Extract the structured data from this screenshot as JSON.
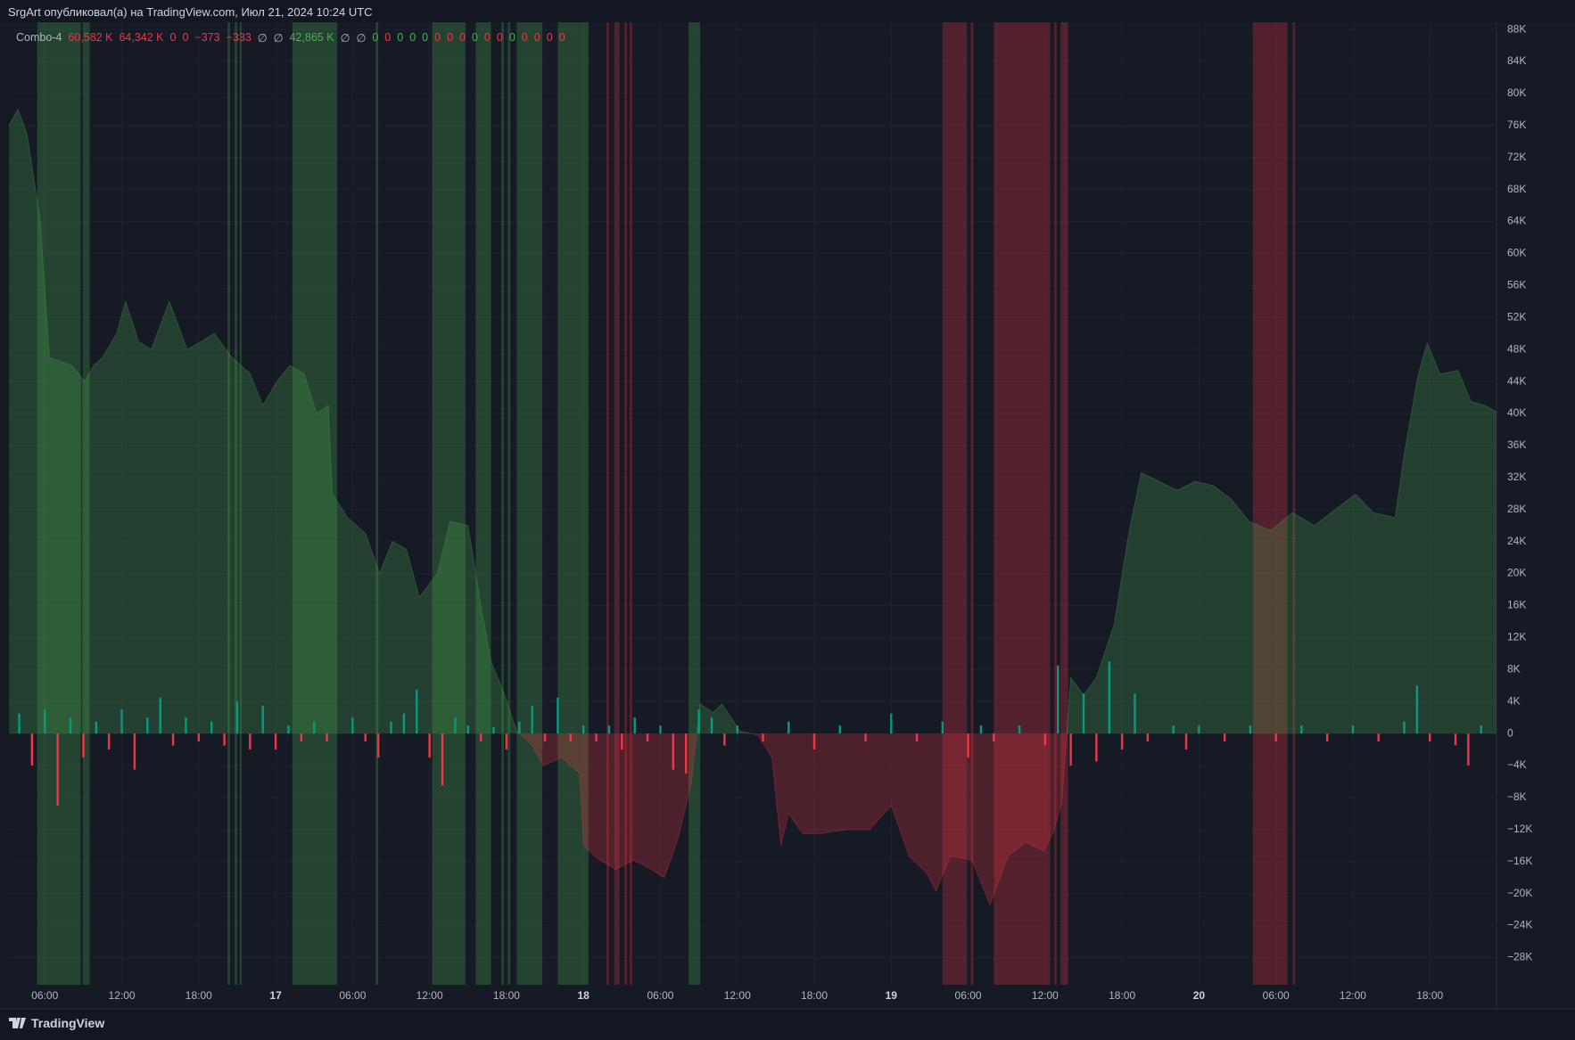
{
  "header": "SrgArt опубликовал(а) на TradingView.com, Июл 21, 2024 10:24 UTC",
  "footer": "TradingView",
  "chart_data": {
    "type": "area",
    "legend": [
      {
        "text": "Combo-4",
        "color": "#b2b5be"
      },
      {
        "text": "60,582 K",
        "color": "#f23645"
      },
      {
        "text": "64,342 K",
        "color": "#f23645"
      },
      {
        "text": "0",
        "color": "#f23645"
      },
      {
        "text": "0",
        "color": "#f23645"
      },
      {
        "text": "−373",
        "color": "#f23645"
      },
      {
        "text": "−333",
        "color": "#f23645"
      },
      {
        "text": "∅",
        "color": "#b2b5be"
      },
      {
        "text": "∅",
        "color": "#b2b5be"
      },
      {
        "text": "42,865 K",
        "color": "#4caf50"
      },
      {
        "text": "∅",
        "color": "#b2b5be"
      },
      {
        "text": "∅",
        "color": "#b2b5be"
      },
      {
        "text": "0",
        "color": "#4caf50"
      },
      {
        "text": "0",
        "color": "#f23645"
      },
      {
        "text": "0",
        "color": "#4caf50"
      },
      {
        "text": "0",
        "color": "#4caf50"
      },
      {
        "text": "0",
        "color": "#4caf50"
      },
      {
        "text": "0",
        "color": "#f23645"
      },
      {
        "text": "0",
        "color": "#f23645"
      },
      {
        "text": "0",
        "color": "#f23645"
      },
      {
        "text": "0",
        "color": "#4caf50"
      },
      {
        "text": "0",
        "color": "#f23645"
      },
      {
        "text": "0",
        "color": "#f23645"
      },
      {
        "text": "0",
        "color": "#4caf50"
      },
      {
        "text": "0",
        "color": "#f23645"
      },
      {
        "text": "0",
        "color": "#f23645"
      },
      {
        "text": "0",
        "color": "#f23645"
      },
      {
        "text": "0",
        "color": "#f23645"
      }
    ],
    "x": [
      3.2,
      3.9,
      4.6,
      5.65,
      6.35,
      8.1,
      9.1,
      9.8,
      10.5,
      11.6,
      12.3,
      13.3,
      14.3,
      15.7,
      16.4,
      17.1,
      18.2,
      19.2,
      20.6,
      22,
      23,
      24.1,
      25.1,
      26.2,
      27.2,
      28.1,
      28.4,
      29.6,
      31,
      32.1,
      33.1,
      34.2,
      35.2,
      36.6,
      37.6,
      39,
      40,
      40.8,
      41.8,
      42.8,
      43.9,
      44.9,
      46.3,
      47.7,
      48,
      49,
      50.5,
      51.9,
      53.3,
      54.3,
      55.4,
      56.4,
      57.1,
      58.1,
      58.8,
      60.2,
      61.6,
      62.7,
      63.4,
      64,
      65.1,
      66.5,
      68.6,
      70.3,
      72,
      73.4,
      74.8,
      75.5,
      76.6,
      78.3,
      79.7,
      81.1,
      82.5,
      83.9,
      84.6,
      85.3,
      86,
      87,
      88,
      89.4,
      90.5,
      91.5,
      92.9,
      94.3,
      95.7,
      97.1,
      98.5,
      99.9,
      101.6,
      103.3,
      105,
      106.8,
      108.2,
      109.6,
      111.3,
      112,
      113.1,
      113.8,
      114.8,
      116.2,
      117.2,
      118.3,
      119.2
    ],
    "series": [
      {
        "name": "Combo-4",
        "up_color": "#4caf50",
        "down_color": "#f23645",
        "values": [
          76,
          78,
          75,
          64,
          47,
          46,
          44,
          46,
          47,
          50,
          54,
          49,
          48,
          54,
          51,
          48,
          49,
          50,
          47,
          45,
          41,
          44,
          46,
          45,
          40,
          41,
          30,
          27,
          25,
          20,
          24,
          23,
          17,
          20,
          26.5,
          26,
          16,
          9,
          5,
          0.3,
          -1.3,
          -4,
          -3,
          -5,
          -14,
          -15.5,
          -17,
          -15.8,
          -17,
          -18,
          -13,
          -6.3,
          3.7,
          2.6,
          3.7,
          0.3,
          -0.2,
          -3,
          -14,
          -10,
          -12.5,
          -12.5,
          -12,
          -12,
          -9,
          -15.3,
          -17.5,
          -19.7,
          -15.3,
          -15.8,
          -21.4,
          -15.3,
          -13.6,
          -14.7,
          -12.5,
          -8.6,
          7,
          4.8,
          7,
          13.7,
          24.8,
          32.6,
          31.5,
          30.4,
          31.5,
          31,
          29.3,
          26.5,
          25.4,
          27.6,
          26,
          28.2,
          29.9,
          27.6,
          27,
          34.9,
          44.9,
          48.8,
          44.9,
          45.4,
          41.5,
          41,
          40.2
        ]
      }
    ],
    "bars": {
      "up_color": "#089981",
      "down_color": "#f23645",
      "x": [
        4,
        5,
        6,
        7,
        8,
        9,
        10,
        11,
        12,
        13,
        14,
        15,
        16,
        17,
        18,
        19,
        20,
        21,
        22,
        23,
        24,
        25,
        26,
        27,
        28,
        30,
        31,
        32,
        33,
        34,
        35,
        36,
        37,
        38,
        39,
        40,
        41,
        42,
        43,
        44,
        45,
        46,
        47,
        48,
        49,
        50,
        51,
        52,
        53,
        54,
        55,
        56,
        57,
        58,
        59,
        60,
        62,
        64,
        66,
        68,
        70,
        72,
        74,
        76,
        78,
        79,
        80,
        82,
        84,
        85,
        86,
        87,
        88,
        89,
        90,
        91,
        92,
        94,
        95,
        96,
        98,
        100,
        102,
        104,
        106,
        108,
        110,
        112,
        113,
        114,
        116,
        117,
        118
      ],
      "values": [
        2.5,
        -4,
        3,
        -9,
        2,
        -3,
        1.5,
        -2,
        3,
        -4.5,
        2,
        4.5,
        -1.5,
        2,
        -1,
        1.5,
        -1.5,
        4,
        -2,
        3.5,
        -2,
        1,
        -1,
        1.5,
        -1,
        2,
        -1,
        -3,
        1.5,
        2.5,
        5.5,
        -3,
        -6.5,
        2,
        1,
        -1,
        0.8,
        -2,
        1.5,
        3.5,
        -1,
        4.5,
        -1,
        1,
        -1,
        1,
        -2,
        2,
        -1,
        1,
        -4.5,
        -5,
        3,
        2,
        -1.5,
        1,
        -1,
        1.5,
        -2,
        1,
        -1,
        2.5,
        -1,
        1.5,
        -3,
        1,
        -1,
        1,
        -1.5,
        8.5,
        -4,
        5,
        -3.5,
        9,
        -2,
        5,
        -1,
        1,
        -2,
        1,
        -1,
        1,
        -1,
        1,
        -1,
        1,
        -1,
        1.5,
        6,
        -1,
        -1.5,
        -4,
        1
      ]
    },
    "bands": [
      {
        "start": 5.4,
        "end": 8.8,
        "color": "#4caf50"
      },
      {
        "start": 8.95,
        "end": 9.5,
        "color": "#4caf50"
      },
      {
        "start": 20.25,
        "end": 20.45,
        "color": "#4caf50"
      },
      {
        "start": 20.8,
        "end": 21.0,
        "color": "#4caf50"
      },
      {
        "start": 21.2,
        "end": 21.35,
        "color": "#4caf50"
      },
      {
        "start": 25.3,
        "end": 28.8,
        "color": "#4caf50"
      },
      {
        "start": 31.8,
        "end": 32.0,
        "color": "#4caf50"
      },
      {
        "start": 36.2,
        "end": 38.8,
        "color": "#4caf50"
      },
      {
        "start": 39.6,
        "end": 40.8,
        "color": "#4caf50"
      },
      {
        "start": 41.6,
        "end": 41.8,
        "color": "#4caf50"
      },
      {
        "start": 42.1,
        "end": 42.3,
        "color": "#4caf50"
      },
      {
        "start": 42.8,
        "end": 44.8,
        "color": "#4caf50"
      },
      {
        "start": 46.0,
        "end": 48.4,
        "color": "#4caf50"
      },
      {
        "start": 56.2,
        "end": 57.1,
        "color": "#4caf50"
      },
      {
        "start": 49.8,
        "end": 50.0,
        "color": "#f23645"
      },
      {
        "start": 50.4,
        "end": 50.8,
        "color": "#f23645"
      },
      {
        "start": 51.2,
        "end": 51.4,
        "color": "#f23645"
      },
      {
        "start": 51.6,
        "end": 51.8,
        "color": "#f23645"
      },
      {
        "start": 76.0,
        "end": 77.9,
        "color": "#f23645"
      },
      {
        "start": 78.2,
        "end": 78.4,
        "color": "#f23645"
      },
      {
        "start": 80.0,
        "end": 84.4,
        "color": "#f23645"
      },
      {
        "start": 84.7,
        "end": 84.9,
        "color": "#f23645"
      },
      {
        "start": 85.2,
        "end": 85.8,
        "color": "#f23645"
      },
      {
        "start": 100.2,
        "end": 102.9,
        "color": "#f23645"
      },
      {
        "start": 103.3,
        "end": 103.5,
        "color": "#f23645"
      }
    ],
    "xlim": [
      3.2,
      119.2
    ],
    "xticks": [
      {
        "value": 6,
        "label": "06:00"
      },
      {
        "value": 12,
        "label": "12:00"
      },
      {
        "value": 18,
        "label": "18:00"
      },
      {
        "value": 24,
        "label": "17"
      },
      {
        "value": 30,
        "label": "06:00"
      },
      {
        "value": 36,
        "label": "12:00"
      },
      {
        "value": 42,
        "label": "18:00"
      },
      {
        "value": 48,
        "label": "18"
      },
      {
        "value": 54,
        "label": "06:00"
      },
      {
        "value": 60,
        "label": "12:00"
      },
      {
        "value": 66,
        "label": "18:00"
      },
      {
        "value": 72,
        "label": "19"
      },
      {
        "value": 78,
        "label": "06:00"
      },
      {
        "value": 84,
        "label": "12:00"
      },
      {
        "value": 90,
        "label": "18:00"
      },
      {
        "value": 96,
        "label": "20"
      },
      {
        "value": 102,
        "label": "06:00"
      },
      {
        "value": 108,
        "label": "12:00"
      },
      {
        "value": 114,
        "label": "18:00"
      }
    ],
    "ylim": [
      -31.4,
      88.9
    ],
    "yticks": [
      {
        "value": 88,
        "label": "88K"
      },
      {
        "value": 84,
        "label": "84K"
      },
      {
        "value": 80,
        "label": "80K"
      },
      {
        "value": 76,
        "label": "76K"
      },
      {
        "value": 72,
        "label": "72K"
      },
      {
        "value": 68,
        "label": "68K"
      },
      {
        "value": 64,
        "label": "64K"
      },
      {
        "value": 60,
        "label": "60K"
      },
      {
        "value": 56,
        "label": "56K"
      },
      {
        "value": 52,
        "label": "52K"
      },
      {
        "value": 48,
        "label": "48K"
      },
      {
        "value": 44,
        "label": "44K"
      },
      {
        "value": 40,
        "label": "40K"
      },
      {
        "value": 36,
        "label": "36K"
      },
      {
        "value": 32,
        "label": "32K"
      },
      {
        "value": 28,
        "label": "28K"
      },
      {
        "value": 24,
        "label": "24K"
      },
      {
        "value": 20,
        "label": "20K"
      },
      {
        "value": 16,
        "label": "16K"
      },
      {
        "value": 12,
        "label": "12K"
      },
      {
        "value": 8,
        "label": "8K"
      },
      {
        "value": 4,
        "label": "4K"
      },
      0,
      {
        "value": -4,
        "label": "−4K"
      },
      {
        "value": -8,
        "label": "−8K"
      },
      {
        "value": -12,
        "label": "−12K"
      },
      {
        "value": -16,
        "label": "−16K"
      },
      {
        "value": -20,
        "label": "−20K"
      },
      {
        "value": -24,
        "label": "−24K"
      },
      {
        "value": -28,
        "label": "−28K"
      }
    ],
    "grid": true
  }
}
